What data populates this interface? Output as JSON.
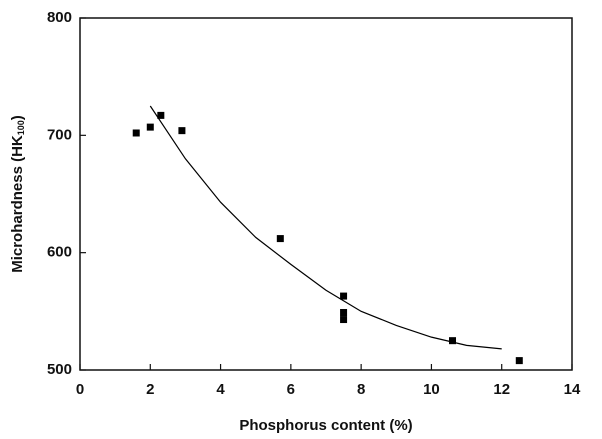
{
  "chart_data": {
    "type": "scatter",
    "x_label": "Phosphorus content (%)",
    "y_label": "Microhardness (HK",
    "y_label_sub": "100",
    "y_label_end": ")",
    "x": [
      1.6,
      2.0,
      2.3,
      2.9,
      5.7,
      7.5,
      7.5,
      7.5,
      10.6,
      12.5
    ],
    "values": [
      702,
      707,
      717,
      704,
      612,
      563,
      549,
      543,
      525,
      508
    ],
    "color": "#000000",
    "fit": {
      "x": [
        2,
        3,
        4,
        5,
        6,
        7,
        8,
        9,
        10,
        11,
        12
      ],
      "values": [
        725,
        680,
        643,
        613,
        590,
        568,
        550,
        538,
        528,
        521,
        518
      ]
    },
    "xlim": [
      0,
      14
    ],
    "xticks": [
      0,
      2,
      4,
      6,
      8,
      10,
      12,
      14
    ],
    "ylim": [
      500,
      800
    ],
    "yticks": [
      500,
      600,
      700,
      800
    ],
    "grid": false
  }
}
